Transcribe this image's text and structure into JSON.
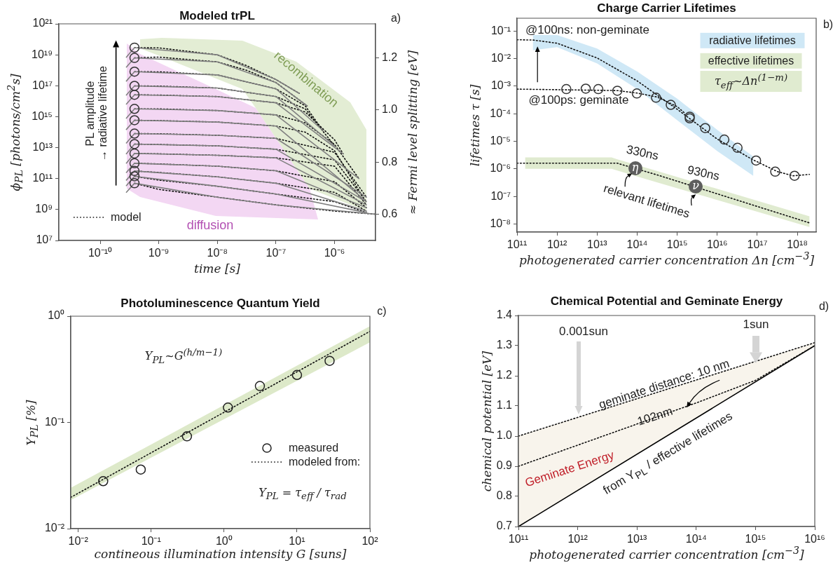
{
  "chart_data": [
    {
      "type": "line",
      "title": "Modeled trPL",
      "xlabel": "time [s]",
      "ylabel": "ϕ$_{PL}$ [photons/cm$^{2}$s]",
      "y2label": "≈ Fermi level splitting [eV]",
      "log": "xy",
      "legend": "bottom left",
      "xlim": [
        1.97e-11,
        5e-06
      ],
      "ylim": [
        10000000.0,
        1e+21
      ],
      "xticks": [
        {
          "value": 1e-10,
          "label": "10⁻¹⁰"
        },
        {
          "value": 1e-09,
          "label": "10⁻⁹"
        },
        {
          "value": 1e-08,
          "label": "10⁻⁸"
        },
        {
          "value": 1e-07,
          "label": "10⁻⁷"
        },
        {
          "value": 1e-06,
          "label": "10⁻⁶"
        }
      ],
      "yticks": [
        {
          "value": 10000000.0,
          "label": "10⁷"
        },
        {
          "value": 1000000000.0,
          "label": "10⁹"
        },
        {
          "value": 100000000000.0,
          "label": "10¹¹"
        },
        {
          "value": 10000000000000.0,
          "label": "10¹³"
        },
        {
          "value": 1000000000000000.0,
          "label": "10¹⁵"
        },
        {
          "value": 1e+17,
          "label": "10¹⁷"
        },
        {
          "value": 1e+19,
          "label": "10¹⁹"
        },
        {
          "value": 1e+21,
          "label": "10²¹"
        }
      ],
      "y2lim": [
        0.5,
        1.33
      ],
      "y2ticks": [
        0.6,
        0.8,
        {
          "value": 1.0,
          "label": "1.0"
        },
        1.2
      ],
      "annotations": [
        "PL amplitude\n→ radiative lifetime",
        "diffusion",
        "recombination",
        "a)"
      ],
      "series": [
        {
          "color": "#808080",
          "line_style": "solid",
          "x": [
            2.8e-10,
            3.85e-10,
            1e-08,
            1e-07,
            2.5e-07
          ],
          "values": [
            7e+18,
            2.9e+19,
            1e+19,
            2.5e+17,
            3.2e+16
          ]
        },
        {
          "color": "#808080",
          "line_style": "solid",
          "x": [
            2.8e-10,
            3.85e-10,
            1e-08,
            1e-07,
            3.4e-07
          ],
          "values": [
            1.6e+18,
            6.3e+18,
            3.5e+18,
            1.6e+17,
            5000000000000000.0
          ]
        },
        {
          "color": "#808080",
          "line_style": "solid",
          "x": [
            2.8e-10,
            3.85e-10,
            1e-08,
            1e-07,
            6.3e-07
          ],
          "values": [
            2e+17,
            8.1e+17,
            5e+17,
            6.3e+16,
            130000000000000.0
          ]
        },
        {
          "color": "#808080",
          "line_style": "solid",
          "x": [
            2.8e-10,
            3.85e-10,
            1e-08,
            1e-07,
            1e-06
          ],
          "values": [
            2.5e+16,
            9.8e+16,
            7.1e+16,
            2e+16,
            13000000000000.0
          ]
        },
        {
          "color": "#808080",
          "line_style": "solid",
          "x": [
            2.8e-10,
            3.85e-10,
            1e-08,
            1e-07,
            1.4e-06
          ],
          "values": [
            6500000000000000.0,
            2.6e+16,
            2e+16,
            7900000000000000.0,
            4000000000000.0
          ]
        },
        {
          "color": "#808080",
          "line_style": "solid",
          "x": [
            2.8e-10,
            3.85e-10,
            1e-08,
            1e-07,
            2.6e-06
          ],
          "values": [
            800000000000000.0,
            3200000000000000.0,
            2500000000000000.0,
            1300000000000000.0,
            100000000000.0
          ]
        },
        {
          "color": "#808080",
          "line_style": "solid",
          "x": [
            2.8e-10,
            3.85e-10,
            1e-08,
            1e-07,
            3.3e-06
          ],
          "values": [
            150000000000000.0,
            590000000000000.0,
            450000000000000.0,
            250000000000000.0,
            4000000000.0
          ]
        },
        {
          "color": "#808080",
          "line_style": "solid",
          "x": [
            2.8e-10,
            3.85e-10,
            1e-08,
            1e-07,
            3.5e-06
          ],
          "values": [
            20000000000000.0,
            81000000000000.0,
            63000000000000.0,
            40000000000000.0,
            6300000000.0
          ]
        },
        {
          "color": "#808080",
          "line_style": "solid",
          "x": [
            2.8e-10,
            3.85e-10,
            1e-08,
            1e-07,
            3.5e-06
          ],
          "values": [
            4000000000000.0,
            17000000000000.0,
            13000000000000.0,
            7900000000000.0,
            3200000000.0
          ]
        },
        {
          "color": "#808080",
          "line_style": "solid",
          "x": [
            2.8e-10,
            3.85e-10,
            1e-08,
            1e-07,
            3.5e-06
          ],
          "values": [
            1000000000000.0,
            4200000000000.0,
            3200000000000.0,
            2200000000000.0,
            2000000000.0
          ]
        },
        {
          "color": "#808080",
          "line_style": "solid",
          "x": [
            2.8e-10,
            3.85e-10,
            1e-08,
            1e-07,
            3.5e-06
          ],
          "values": [
            250000000000.0,
            980000000000.0,
            630000000000.0,
            320000000000.0,
            1300000000.0
          ]
        },
        {
          "color": "#808080",
          "line_style": "solid",
          "x": [
            2.8e-10,
            3.85e-10,
            1e-08,
            1e-07,
            3.5e-06
          ],
          "values": [
            80000000000.0,
            310000000000.0,
            130000000000.0,
            50000000000.0,
            790000000.0
          ]
        },
        {
          "color": "#808080",
          "line_style": "solid",
          "x": [
            2.8e-10,
            3.85e-10,
            1e-08,
            1e-07,
            3.5e-06
          ],
          "values": [
            35000000000.0,
            140000000000.0,
            32000000000.0,
            10000000000.0,
            630000000.0
          ]
        },
        {
          "color": "#808080",
          "line_style": "solid",
          "x": [
            2.8e-10,
            3.85e-10,
            1e-08,
            1e-07,
            5e-06
          ],
          "values": [
            13000000000.0,
            50000000000.0,
            6300000000.0,
            2000000000.0,
            500000000.0
          ]
        },
        {
          "name": "model",
          "color": "#111111",
          "line_style": "dotted",
          "x": [
            3.85e-10,
            1e-09,
            1e-08,
            3.16e-08,
            1e-07,
            2.5e-07
          ],
          "values": [
            2.9e+19,
            2.8e+19,
            1e+19,
            2e+18,
            2.5e+17,
            3.2e+16
          ]
        },
        {
          "color": "#111111",
          "line_style": "dotted",
          "x": [
            3.85e-10,
            1e-09,
            1e-08,
            3.16e-08,
            1e-07,
            3.4e-07
          ],
          "values": [
            6.3e+18,
            7.1e+18,
            3.5e+18,
            1e+18,
            1.6e+17,
            5000000000000000.0
          ]
        },
        {
          "color": "#111111",
          "line_style": "dotted",
          "x": [
            3.85e-10,
            1e-09,
            1e-08,
            1e-07,
            3.16e-07,
            6.3e-07
          ],
          "values": [
            8.1e+17,
            7.9e+17,
            5e+17,
            6.3e+16,
            5000000000000000.0,
            130000000000000.0
          ]
        },
        {
          "color": "#111111",
          "line_style": "dotted",
          "x": [
            3.85e-10,
            1e-09,
            1e-08,
            1e-07,
            3.16e-07,
            1e-06
          ],
          "values": [
            9.8e+16,
            9.5e+16,
            7.1e+16,
            2e+16,
            3200000000000000.0,
            13000000000000.0
          ]
        },
        {
          "color": "#111111",
          "line_style": "dotted",
          "x": [
            3.85e-10,
            1e-09,
            1e-08,
            1e-07,
            3.16e-07,
            1e-06,
            1.4e-06
          ],
          "values": [
            2.6e+16,
            2.5e+16,
            2e+16,
            7900000000000000.0,
            2000000000000000.0,
            32000000000000.0,
            4000000000000.0
          ]
        },
        {
          "color": "#111111",
          "line_style": "dotted",
          "x": [
            3.85e-10,
            1e-09,
            1e-08,
            1e-07,
            3.16e-07,
            1e-06,
            2.6e-06
          ],
          "values": [
            3200000000000000.0,
            3200000000000000.0,
            2500000000000000.0,
            1300000000000000.0,
            400000000000000.0,
            16000000000000.0,
            100000000000.0
          ]
        },
        {
          "color": "#111111",
          "line_style": "dotted",
          "x": [
            3.85e-10,
            1e-09,
            1e-08,
            1e-07,
            3.16e-07,
            1e-06,
            3.3e-06
          ],
          "values": [
            590000000000000.0,
            560000000000000.0,
            450000000000000.0,
            250000000000000.0,
            100000000000000.0,
            6300000000000.0,
            4000000000.0
          ]
        },
        {
          "color": "#111111",
          "line_style": "dotted",
          "x": [
            3.85e-10,
            1e-09,
            1e-08,
            1e-07,
            1e-06,
            3.5e-06
          ],
          "values": [
            81000000000000.0,
            79000000000000.0,
            63000000000000.0,
            40000000000000.0,
            5000000000000.0,
            6300000000.0
          ]
        },
        {
          "color": "#111111",
          "line_style": "dotted",
          "x": [
            3.85e-10,
            1e-09,
            1e-08,
            1e-07,
            1e-06,
            3.5e-06
          ],
          "values": [
            17000000000000.0,
            16000000000000.0,
            13000000000000.0,
            7900000000000.0,
            1600000000000.0,
            3200000000.0
          ]
        },
        {
          "color": "#111111",
          "line_style": "dotted",
          "x": [
            3.85e-10,
            1e-09,
            1e-08,
            1e-07,
            1e-06,
            3.5e-06
          ],
          "values": [
            4200000000000.0,
            4000000000000.0,
            3200000000000.0,
            2200000000000.0,
            630000000000.0,
            2000000000.0
          ]
        },
        {
          "color": "#111111",
          "line_style": "dotted",
          "x": [
            3.85e-10,
            1e-09,
            1e-08,
            1e-07,
            1e-06,
            3.5e-06
          ],
          "values": [
            980000000000.0,
            890000000000.0,
            630000000000.0,
            320000000000.0,
            63000000000.0,
            1300000000.0
          ]
        },
        {
          "color": "#111111",
          "line_style": "dotted",
          "x": [
            3.85e-10,
            1e-09,
            1e-08,
            1e-07,
            1e-06,
            3.5e-06
          ],
          "values": [
            310000000000.0,
            250000000000.0,
            130000000000.0,
            50000000000.0,
            13000000000.0,
            790000000.0
          ]
        },
        {
          "color": "#111111",
          "line_style": "dotted",
          "x": [
            3.85e-10,
            1e-09,
            1e-08,
            1e-07,
            1e-06,
            3.5e-06
          ],
          "values": [
            140000000000.0,
            79000000000.0,
            32000000000.0,
            10000000000.0,
            3200000000.0,
            630000000.0
          ]
        },
        {
          "color": "#111111",
          "line_style": "dotted",
          "x": [
            3.85e-10,
            1e-09,
            1e-08,
            1e-07,
            1e-06,
            5e-06
          ],
          "values": [
            50000000000.0,
            20000000000.0,
            6300000000.0,
            2000000000.0,
            790000000.0,
            500000000.0
          ]
        },
        {
          "type": "scatter",
          "color": "#333333",
          "marker": "circle",
          "x": [
            3.85e-10,
            3.85e-10,
            3.85e-10,
            3.85e-10,
            3.85e-10,
            3.85e-10,
            3.85e-10,
            3.85e-10,
            3.85e-10,
            3.85e-10,
            3.85e-10,
            3.85e-10,
            3.85e-10,
            3.85e-10
          ],
          "values": [
            2.9e+19,
            6.3e+18,
            8.1e+17,
            9.8e+16,
            2.6e+16,
            3200000000000000.0,
            590000000000000.0,
            81000000000000.0,
            17000000000000.0,
            4200000000000.0,
            980000000000.0,
            310000000000.0,
            140000000000.0,
            50000000000.0
          ]
        }
      ]
    },
    {
      "type": "line",
      "title": "Charge Carrier Lifetimes",
      "xlabel": "photogenerated carrier concentration Δn [cm$^{−3}$]",
      "ylabel": "lifetimes τ  [s]",
      "log": "xy",
      "xlim": [
        100000000000.0,
        2.95e+18
      ],
      "ylim": [
        5.1e-09,
        0.29
      ],
      "xticks": [
        {
          "value": 100000000000.0,
          "label": "10¹¹"
        },
        {
          "value": 1000000000000.0,
          "label": "10¹²"
        },
        {
          "value": 10000000000000.0,
          "label": "10¹³"
        },
        {
          "value": 100000000000000.0,
          "label": "10¹⁴"
        },
        {
          "value": 1000000000000000.0,
          "label": "10¹⁵"
        },
        {
          "value": 1e+16,
          "label": "10¹⁶"
        },
        {
          "value": 1e+17,
          "label": "10¹⁷"
        },
        {
          "value": 1e+18,
          "label": "10¹⁸"
        }
      ],
      "yticks": [
        {
          "value": 1e-08,
          "label": "10⁻⁸"
        },
        {
          "value": 1e-07,
          "label": "10⁻⁷"
        },
        {
          "value": 1e-06,
          "label": "10⁻⁶"
        },
        {
          "value": 1e-05,
          "label": "10⁻⁵"
        },
        {
          "value": 0.0001,
          "label": "10⁻⁴"
        },
        {
          "value": 0.001,
          "label": "10⁻³"
        },
        {
          "value": 0.01,
          "label": "10⁻²"
        },
        {
          "value": 0.1,
          "label": "10⁻¹"
        }
      ],
      "annotations": [
        "@100ns: non-geminate",
        {
          "text": "@100ps: geminate",
          "x": 3000000000000.0,
          "y": 0.00078
        },
        "330ns",
        "930ns",
        "relevant lifetimes",
        {
          "text": "η",
          "x": 89000000000000.0,
          "y": 1.07e-06
        },
        {
          "text": "ν",
          "x": 2900000000000000.0,
          "y": 2.3e-07
        },
        "radiative lifetimes",
        "effective lifetimes",
        "τ$_{eff}$~Δn$^{(1−m)}$",
        "b)"
      ],
      "series": [
        {
          "color": "#111111",
          "line_style": "dotted",
          "x": [
            100000000000.0,
            250000000000.0,
            1000000000000.0,
            10000000000000.0,
            100000000000000.0,
            1000000000000000.0,
            1e+16,
            7.9e+16,
            1e+17,
            3.2e+17,
            7.9e+17,
            2e+18
          ],
          "values": [
            0.048,
            0.047,
            0.036,
            0.0105,
            0.00155,
            0.000145,
            1.2e-05,
            2.1e-06,
            1.8e-06,
            7.9e-07,
            5.6e-07,
            6.3e-07
          ],
          "lower": [
            null,
            0.02,
            0.026,
            0.0066,
            0.00078,
            5.8e-05,
            4.4e-06,
            5.6e-07,
            null,
            null,
            null,
            null
          ],
          "upper": [
            null,
            0.071,
            0.071,
            0.023,
            0.0034,
            0.00035,
            2.6e-05,
            2.8e-06,
            null,
            null,
            null,
            null
          ]
        },
        {
          "color": "#111111",
          "line_style": "dotted",
          "x": [
            100000000000.0,
            32000000000000.0,
            100000000000000.0,
            320000000000000.0,
            1000000000000000.0,
            1600000000000000.0
          ],
          "values": [
            0.00078,
            0.00069,
            0.00056,
            0.0004,
            0.00018,
            0.0001
          ]
        },
        {
          "color": "#111111",
          "line_style": "dotted",
          "x": [
            100000000000.0,
            160000000000.0,
            23000000000000.0,
            32000000000000.0,
            320000000000000.0,
            2e+18
          ],
          "values": [
            1.6e-06,
            1.6e-06,
            1.6e-06,
            1.6e-06,
            6e-07,
            1.1e-08
          ],
          "lower": [
            null,
            1e-06,
            1e-06,
            8.7e-07,
            3.2e-07,
            7.8e-09
          ],
          "upper": [
            null,
            2.6e-06,
            2.6e-06,
            2.2e-06,
            8.3e-07,
            1.9e-08
          ]
        },
        {
          "type": "scatter",
          "color": "#333333",
          "marker": "circle",
          "x": [
            1700000000000.0,
            5200000000000.0,
            10700000000000.0,
            32000000000000.0,
            98000000000000.0,
            295000000000000.0,
            690000000000000.0,
            2050000000000000.0,
            2050000000000000.0,
            5000000000000000.0,
            1.5e+16,
            3.2e+16,
            9.3e+16,
            2.8e+17,
            8.5e+17
          ],
          "values": [
            0.00078,
            0.00081,
            0.00078,
            0.00068,
            0.00054,
            0.00038,
            0.00021,
            7.8e-05,
            6.8e-05,
            3e-05,
            1.15e-05,
            5.8e-06,
            2e-06,
            7.9e-07,
            5.6e-07
          ]
        }
      ]
    },
    {
      "type": "line",
      "title": "Photoluminescence Quantum Yield",
      "xlabel": "contineous illumination intensity G [suns]",
      "ylabel": "Y$_{PL}$ [%]",
      "log": "xy",
      "legend": "right",
      "xlim": [
        0.0079,
        100
      ],
      "ylim": [
        0.01,
        1
      ],
      "xticks": [
        {
          "value": 0.01,
          "label": "10⁻²"
        },
        {
          "value": 0.1,
          "label": "10⁻¹"
        },
        {
          "value": 1,
          "label": "10⁰"
        },
        {
          "value": 10,
          "label": "10¹"
        },
        {
          "value": 100,
          "label": "10²"
        }
      ],
      "yticks": [
        {
          "value": 0.01,
          "label": "10⁻²"
        },
        {
          "value": 0.1,
          "label": "10⁻¹"
        },
        {
          "value": 1,
          "label": "10⁰"
        }
      ],
      "annotations": [
        "Y$_{PL}$~G$^{(h/m−1)}$",
        "Y$_{PL}$ = τ$_{eff}$ / τ$_{rad}$",
        "c)"
      ],
      "series": [
        {
          "type": "scatter",
          "name": "measured",
          "color": "#222222",
          "marker": "circle",
          "x": [
            0.022,
            0.072,
            0.31,
            1.13,
            3.1,
            10,
            28
          ],
          "values": [
            0.028,
            0.036,
            0.074,
            0.138,
            0.22,
            0.28,
            0.38
          ]
        },
        {
          "name": "modeled from:",
          "color": "#111111",
          "line_style": "dotted",
          "x": [
            0.0079,
            100
          ],
          "values": [
            0.0197,
            0.72
          ],
          "lower": [
            0.0186,
            0.567
          ],
          "upper": [
            0.0242,
            0.805
          ]
        }
      ]
    },
    {
      "type": "line",
      "title": "Chemical Potential and Geminate Energy",
      "xlabel": "photogenerated carrier concentration [cm$^{−3}$]",
      "ylabel": "chemical potential [eV]",
      "log": "x",
      "xlim": [
        100000000000.0,
        1e+16
      ],
      "ylim": [
        0.7,
        1.4
      ],
      "xticks": [
        {
          "value": 100000000000.0,
          "label": "10¹¹"
        },
        {
          "value": 1000000000000.0,
          "label": "10¹²"
        },
        {
          "value": 10000000000000.0,
          "label": "10¹³"
        },
        {
          "value": 100000000000000.0,
          "label": "10¹⁴"
        },
        {
          "value": 1000000000000000.0,
          "label": "10¹⁵"
        },
        {
          "value": 1e+16,
          "label": "10¹⁶"
        }
      ],
      "yticks": [
        0.7,
        0.8,
        0.9,
        {
          "value": 1.0,
          "label": "1.0"
        },
        1.1,
        1.2,
        1.3,
        1.4
      ],
      "annotations": [
        "0.001sun",
        "1sun",
        "geminate distance: 10 nm",
        "102nm",
        "Geminate Energy",
        "from Y$_{PL}$ / effective lifetimes",
        "d)"
      ],
      "series": [
        {
          "color": "#111111",
          "line_style": "dotted",
          "x": [
            100000000000.0,
            1e+16
          ],
          "values": [
            1.0,
            1.31
          ],
          "lower": [
            0.7,
            1.3
          ],
          "upper": [
            1.0,
            1.31
          ]
        },
        {
          "color": "#111111",
          "line_style": "dotted",
          "x": [
            100000000000.0,
            100000000000000.0,
            1000000000000000.0,
            1e+16
          ],
          "values": [
            0.9,
            1.11,
            1.185,
            1.3
          ]
        },
        {
          "color": "#000000",
          "line_style": "solid",
          "x": [
            100000000000.0,
            1e+16
          ],
          "values": [
            0.7,
            1.3
          ]
        }
      ]
    }
  ]
}
